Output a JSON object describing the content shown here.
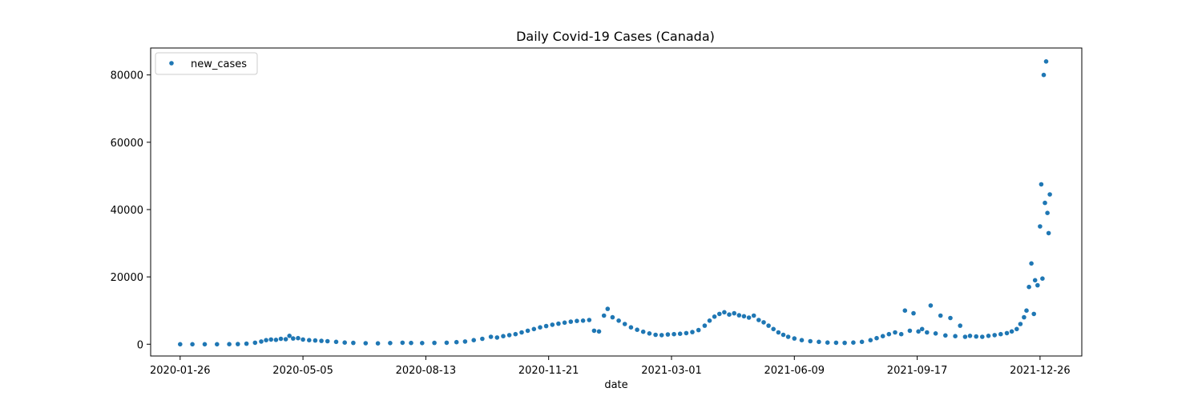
{
  "chart_data": {
    "type": "scatter",
    "title": "Daily Covid-19 Cases (Canada)",
    "xlabel": "date",
    "ylabel": "",
    "x_ticks": [
      "2020-01-26",
      "2020-05-05",
      "2020-08-13",
      "2020-11-21",
      "2021-03-01",
      "2021-06-09",
      "2021-09-17",
      "2021-12-26"
    ],
    "y_ticks": [
      "0",
      "20000",
      "40000",
      "60000",
      "80000"
    ],
    "xlim": [
      "2020-01-02",
      "2022-01-29"
    ],
    "ylim": [
      -3500,
      88000
    ],
    "grid": false,
    "legend": "top-left",
    "marker_color": "#1f77b4",
    "series": [
      {
        "name": "new_cases",
        "points": [
          [
            "2020-01-26",
            0
          ],
          [
            "2020-02-05",
            0
          ],
          [
            "2020-02-15",
            1
          ],
          [
            "2020-02-25",
            2
          ],
          [
            "2020-03-06",
            10
          ],
          [
            "2020-03-13",
            50
          ],
          [
            "2020-03-20",
            150
          ],
          [
            "2020-03-27",
            450
          ],
          [
            "2020-04-01",
            800
          ],
          [
            "2020-04-05",
            1200
          ],
          [
            "2020-04-09",
            1400
          ],
          [
            "2020-04-13",
            1300
          ],
          [
            "2020-04-17",
            1600
          ],
          [
            "2020-04-21",
            1500
          ],
          [
            "2020-04-24",
            2500
          ],
          [
            "2020-04-27",
            1700
          ],
          [
            "2020-05-01",
            1800
          ],
          [
            "2020-05-05",
            1400
          ],
          [
            "2020-05-10",
            1200
          ],
          [
            "2020-05-15",
            1100
          ],
          [
            "2020-05-20",
            1000
          ],
          [
            "2020-05-25",
            900
          ],
          [
            "2020-06-01",
            700
          ],
          [
            "2020-06-08",
            500
          ],
          [
            "2020-06-15",
            400
          ],
          [
            "2020-06-25",
            300
          ],
          [
            "2020-07-05",
            250
          ],
          [
            "2020-07-15",
            350
          ],
          [
            "2020-07-25",
            450
          ],
          [
            "2020-08-01",
            380
          ],
          [
            "2020-08-10",
            350
          ],
          [
            "2020-08-20",
            400
          ],
          [
            "2020-08-30",
            450
          ],
          [
            "2020-09-07",
            600
          ],
          [
            "2020-09-14",
            800
          ],
          [
            "2020-09-21",
            1200
          ],
          [
            "2020-09-28",
            1600
          ],
          [
            "2020-10-05",
            2200
          ],
          [
            "2020-10-10",
            2000
          ],
          [
            "2020-10-15",
            2400
          ],
          [
            "2020-10-20",
            2700
          ],
          [
            "2020-10-25",
            3000
          ],
          [
            "2020-10-30",
            3500
          ],
          [
            "2020-11-04",
            4000
          ],
          [
            "2020-11-09",
            4500
          ],
          [
            "2020-11-14",
            5000
          ],
          [
            "2020-11-19",
            5400
          ],
          [
            "2020-11-24",
            5800
          ],
          [
            "2020-11-29",
            6100
          ],
          [
            "2020-12-04",
            6400
          ],
          [
            "2020-12-09",
            6700
          ],
          [
            "2020-12-14",
            6900
          ],
          [
            "2020-12-19",
            7000
          ],
          [
            "2020-12-24",
            7200
          ],
          [
            "2020-12-28",
            4000
          ],
          [
            "2021-01-01",
            3800
          ],
          [
            "2021-01-05",
            8500
          ],
          [
            "2021-01-08",
            10500
          ],
          [
            "2021-01-12",
            8000
          ],
          [
            "2021-01-17",
            7000
          ],
          [
            "2021-01-22",
            6000
          ],
          [
            "2021-01-27",
            5000
          ],
          [
            "2021-02-01",
            4300
          ],
          [
            "2021-02-06",
            3700
          ],
          [
            "2021-02-11",
            3200
          ],
          [
            "2021-02-16",
            2800
          ],
          [
            "2021-02-21",
            2700
          ],
          [
            "2021-02-26",
            2900
          ],
          [
            "2021-03-03",
            3000
          ],
          [
            "2021-03-08",
            3100
          ],
          [
            "2021-03-13",
            3300
          ],
          [
            "2021-03-18",
            3600
          ],
          [
            "2021-03-23",
            4200
          ],
          [
            "2021-03-28",
            5500
          ],
          [
            "2021-04-01",
            7000
          ],
          [
            "2021-04-05",
            8200
          ],
          [
            "2021-04-09",
            9000
          ],
          [
            "2021-04-13",
            9500
          ],
          [
            "2021-04-17",
            8800
          ],
          [
            "2021-04-21",
            9200
          ],
          [
            "2021-04-25",
            8600
          ],
          [
            "2021-04-29",
            8300
          ],
          [
            "2021-05-03",
            7900
          ],
          [
            "2021-05-07",
            8500
          ],
          [
            "2021-05-11",
            7200
          ],
          [
            "2021-05-15",
            6500
          ],
          [
            "2021-05-19",
            5500
          ],
          [
            "2021-05-23",
            4500
          ],
          [
            "2021-05-27",
            3500
          ],
          [
            "2021-05-31",
            2800
          ],
          [
            "2021-06-04",
            2200
          ],
          [
            "2021-06-09",
            1700
          ],
          [
            "2021-06-15",
            1200
          ],
          [
            "2021-06-22",
            900
          ],
          [
            "2021-06-29",
            700
          ],
          [
            "2021-07-06",
            500
          ],
          [
            "2021-07-13",
            450
          ],
          [
            "2021-07-20",
            400
          ],
          [
            "2021-07-27",
            500
          ],
          [
            "2021-08-03",
            700
          ],
          [
            "2021-08-10",
            1200
          ],
          [
            "2021-08-15",
            1800
          ],
          [
            "2021-08-20",
            2400
          ],
          [
            "2021-08-25",
            3000
          ],
          [
            "2021-08-30",
            3500
          ],
          [
            "2021-09-04",
            3000
          ],
          [
            "2021-09-07",
            10000
          ],
          [
            "2021-09-11",
            4000
          ],
          [
            "2021-09-14",
            9200
          ],
          [
            "2021-09-18",
            3800
          ],
          [
            "2021-09-21",
            4500
          ],
          [
            "2021-09-25",
            3500
          ],
          [
            "2021-09-28",
            11500
          ],
          [
            "2021-10-02",
            3200
          ],
          [
            "2021-10-06",
            8500
          ],
          [
            "2021-10-10",
            2600
          ],
          [
            "2021-10-14",
            7800
          ],
          [
            "2021-10-18",
            2400
          ],
          [
            "2021-10-22",
            5500
          ],
          [
            "2021-10-26",
            2200
          ],
          [
            "2021-10-30",
            2500
          ],
          [
            "2021-11-04",
            2300
          ],
          [
            "2021-11-09",
            2200
          ],
          [
            "2021-11-14",
            2500
          ],
          [
            "2021-11-19",
            2700
          ],
          [
            "2021-11-24",
            3000
          ],
          [
            "2021-11-29",
            3300
          ],
          [
            "2021-12-03",
            3800
          ],
          [
            "2021-12-07",
            4500
          ],
          [
            "2021-12-10",
            6000
          ],
          [
            "2021-12-13",
            8000
          ],
          [
            "2021-12-15",
            10000
          ],
          [
            "2021-12-17",
            17000
          ],
          [
            "2021-12-19",
            24000
          ],
          [
            "2021-12-21",
            9000
          ],
          [
            "2021-12-22",
            19000
          ],
          [
            "2021-12-24",
            17500
          ],
          [
            "2021-12-26",
            35000
          ],
          [
            "2021-12-27",
            47500
          ],
          [
            "2021-12-28",
            19500
          ],
          [
            "2021-12-29",
            80000
          ],
          [
            "2021-12-30",
            42000
          ],
          [
            "2021-12-31",
            84000
          ],
          [
            "2022-01-01",
            39000
          ],
          [
            "2022-01-02",
            33000
          ],
          [
            "2022-01-03",
            44500
          ]
        ]
      }
    ]
  }
}
